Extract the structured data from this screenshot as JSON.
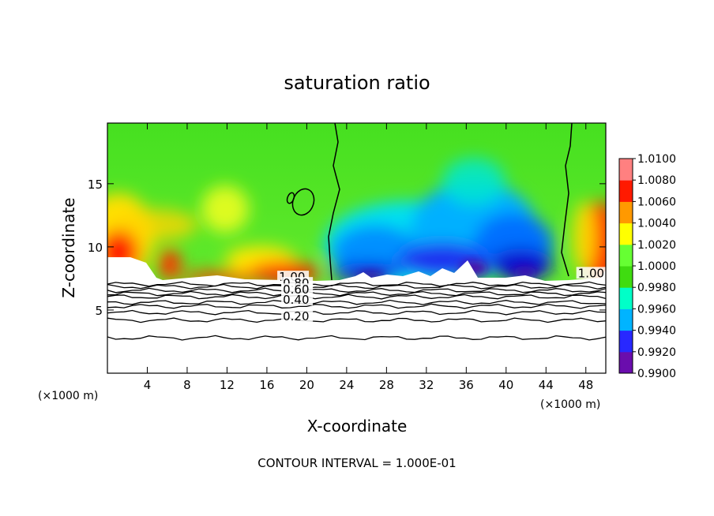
{
  "chart_data": {
    "type": "heatmap",
    "title": "saturation ratio",
    "xlabel": "X-coordinate",
    "ylabel": "Z-coordinate",
    "x_unit_label": "(×1000 m)",
    "x_unit_label_right": "(×1000 m)",
    "footer": "CONTOUR INTERVAL = 1.000E-01",
    "xlim": [
      0,
      50
    ],
    "ylim": [
      0,
      19.8
    ],
    "x_ticks": [
      4,
      8,
      12,
      16,
      20,
      24,
      28,
      32,
      36,
      40,
      44,
      48
    ],
    "x_tick_labels": [
      "4",
      "8",
      "12",
      "16",
      "20",
      "24",
      "28",
      "32",
      "36",
      "40",
      "44",
      "48"
    ],
    "y_ticks": [
      5,
      10,
      15
    ],
    "y_tick_labels": [
      "5",
      "10",
      "15"
    ],
    "colorbar": {
      "min": 0.99,
      "max": 1.01,
      "tick_labels": [
        "1.0100",
        "1.0080",
        "1.0060",
        "1.0040",
        "1.0020",
        "1.0000",
        "0.9980",
        "0.9960",
        "0.9940",
        "0.9920",
        "0.9900"
      ],
      "colors": [
        "#6a0dad",
        "#2828ff",
        "#00b4ff",
        "#00ffc8",
        "#3fdc10",
        "#66ff33",
        "#ffff00",
        "#ff9900",
        "#ff1a00",
        "#ff8080"
      ]
    },
    "contour_labels": [
      {
        "text": "1.00",
        "x": 17.2,
        "y": 7.3
      },
      {
        "text": "0.80",
        "x": 17.6,
        "y": 6.8
      },
      {
        "text": "0.60",
        "x": 17.6,
        "y": 6.3
      },
      {
        "text": "0.40",
        "x": 17.6,
        "y": 5.5
      },
      {
        "text": "0.20",
        "x": 17.6,
        "y": 4.2
      },
      {
        "text": "1.00",
        "x": 47.2,
        "y": 7.6
      }
    ],
    "contour_levels": [
      {
        "value": 1.0,
        "z": 7.05
      },
      {
        "value": 0.9,
        "z": 6.85
      },
      {
        "value": 0.8,
        "z": 6.55
      },
      {
        "value": 0.7,
        "z": 6.3
      },
      {
        "value": 0.6,
        "z": 6.05
      },
      {
        "value": 0.5,
        "z": 5.6
      },
      {
        "value": 0.4,
        "z": 5.3
      },
      {
        "value": 0.3,
        "z": 4.8
      },
      {
        "value": 0.2,
        "z": 4.2
      },
      {
        "value": 0.1,
        "z": 2.8
      }
    ]
  }
}
